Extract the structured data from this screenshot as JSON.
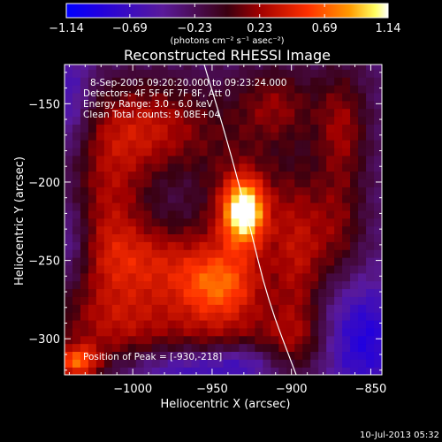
{
  "chart_data": {
    "type": "heatmap",
    "title": "Reconstructed RHESSI Image",
    "xlabel": "Heliocentric X (arcsec)",
    "ylabel": "Heliocentric Y (arcsec)",
    "xlim": [
      -1043,
      -843
    ],
    "ylim": [
      -323,
      -125
    ],
    "x_ticks": [
      {
        "v": -1000,
        "label": "−1000"
      },
      {
        "v": -950,
        "label": "−950"
      },
      {
        "v": -900,
        "label": "−900"
      },
      {
        "v": -850,
        "label": "−850"
      }
    ],
    "y_ticks": [
      {
        "v": -150,
        "label": "−150"
      },
      {
        "v": -200,
        "label": "−200"
      },
      {
        "v": -250,
        "label": "−250"
      },
      {
        "v": -300,
        "label": "−300"
      }
    ],
    "colorbar": {
      "range": [
        -1.14,
        1.14
      ],
      "tick_values": [
        -1.14,
        -0.69,
        -0.23,
        0.23,
        0.69,
        1.14
      ],
      "tick_labels": [
        "−1.14",
        "−0.69",
        "−0.23",
        "0.23",
        "0.69",
        "1.14"
      ],
      "units": "(photons cm⁻² s⁻¹ asec⁻²)"
    },
    "annotations": [
      "8-Sep-2005 09:20:20.000 to 09:23:24.000",
      "Detectors: 4F 5F 6F 7F 8F, Att 0",
      "Energy Range: 3.0 - 6.0 keV",
      "Clean    Total counts: 9.08E+04"
    ],
    "peak_label": "Position of Peak = [-930,-218]",
    "peak": {
      "x": -930,
      "y": -218,
      "value": 1.14
    },
    "limb_curve": [
      [
        -955,
        -125
      ],
      [
        -940,
        -175
      ],
      [
        -927,
        -225
      ],
      [
        -915,
        -275
      ],
      [
        -897,
        -323
      ]
    ],
    "sources": [
      {
        "x": -930,
        "y": -218,
        "amp": 1.0,
        "sx": 9,
        "sy": 14
      },
      {
        "x": -930,
        "y": -218,
        "amp": 0.45,
        "sx": 20,
        "sy": 30
      },
      {
        "x": -990,
        "y": -165,
        "amp": 0.55,
        "sx": 32,
        "sy": 22
      },
      {
        "x": -1015,
        "y": -215,
        "amp": 0.45,
        "sx": 18,
        "sy": 32
      },
      {
        "x": -985,
        "y": -250,
        "amp": 0.5,
        "sx": 35,
        "sy": 18
      },
      {
        "x": -1010,
        "y": -290,
        "amp": 0.5,
        "sx": 30,
        "sy": 20
      },
      {
        "x": -1035,
        "y": -315,
        "amp": 0.75,
        "sx": 10,
        "sy": 8
      },
      {
        "x": -945,
        "y": -290,
        "amp": 0.4,
        "sx": 25,
        "sy": 20
      },
      {
        "x": -945,
        "y": -265,
        "amp": 0.45,
        "sx": 18,
        "sy": 14
      },
      {
        "x": -910,
        "y": -150,
        "amp": 0.4,
        "sx": 18,
        "sy": 18
      },
      {
        "x": -895,
        "y": -245,
        "amp": 0.45,
        "sx": 12,
        "sy": 38
      },
      {
        "x": -868,
        "y": -165,
        "amp": 0.45,
        "sx": 12,
        "sy": 28
      },
      {
        "x": -870,
        "y": -230,
        "amp": 0.35,
        "sx": 12,
        "sy": 25
      },
      {
        "x": -898,
        "y": -300,
        "amp": 0.3,
        "sx": 18,
        "sy": 15
      },
      {
        "x": -855,
        "y": -300,
        "amp": -0.5,
        "sx": 18,
        "sy": 25
      },
      {
        "x": -1040,
        "y": -150,
        "amp": -0.35,
        "sx": 10,
        "sy": 25
      },
      {
        "x": -1040,
        "y": -240,
        "amp": -0.3,
        "sx": 10,
        "sy": 20
      },
      {
        "x": -965,
        "y": -320,
        "amp": -0.4,
        "sx": 25,
        "sy": 10
      },
      {
        "x": -930,
        "y": -315,
        "amp": -0.3,
        "sx": 14,
        "sy": 8
      }
    ]
  },
  "footer": {
    "timestamp": "10-Jul-2013 05:32"
  }
}
